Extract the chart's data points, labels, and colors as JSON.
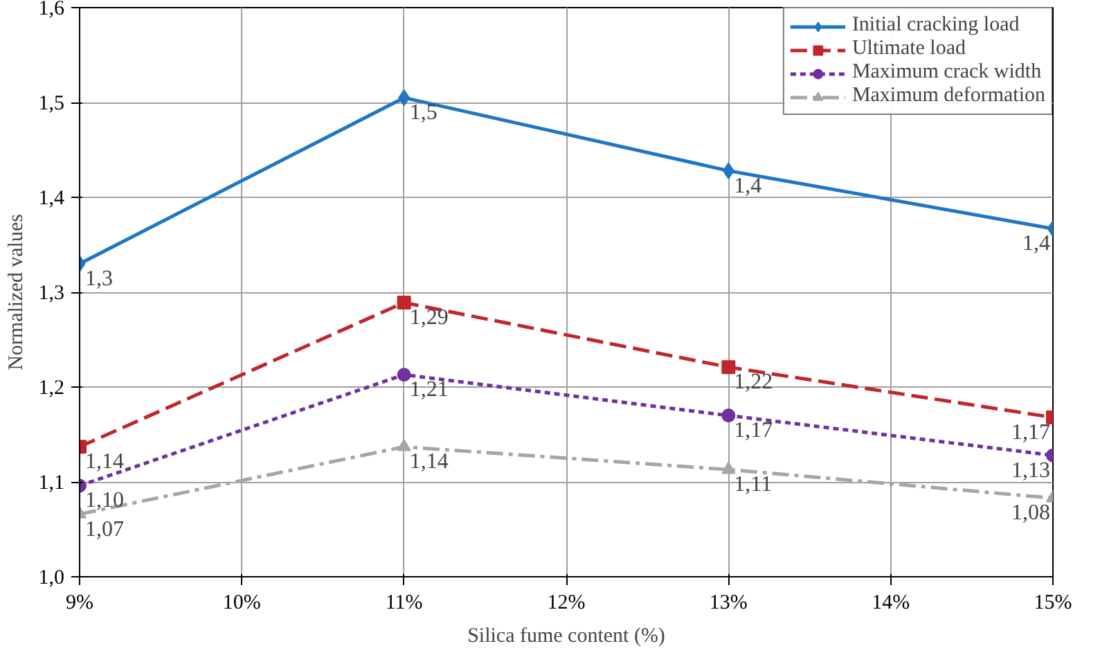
{
  "chart_data": {
    "type": "line",
    "xlabel": "Silica fume content (%)",
    "ylabel": "Normalized values",
    "x": [
      9,
      11,
      13,
      15
    ],
    "xlim": [
      9,
      15
    ],
    "xticks": [
      {
        "value": 9,
        "label": "9%"
      },
      {
        "value": 10,
        "label": "10%"
      },
      {
        "value": 11,
        "label": "11%"
      },
      {
        "value": 12,
        "label": "12%"
      },
      {
        "value": 13,
        "label": "13%"
      },
      {
        "value": 14,
        "label": "14%"
      },
      {
        "value": 15,
        "label": "15%"
      }
    ],
    "ylim": [
      1.0,
      1.6
    ],
    "yticks": [
      {
        "value": 1.0,
        "label": "1,0"
      },
      {
        "value": 1.1,
        "label": "1,1"
      },
      {
        "value": 1.2,
        "label": "1,2"
      },
      {
        "value": 1.3,
        "label": "1,3"
      },
      {
        "value": 1.4,
        "label": "1,4"
      },
      {
        "value": 1.5,
        "label": "1,5"
      },
      {
        "value": 1.6,
        "label": "1,6"
      }
    ],
    "grid": true,
    "legend": "top right",
    "series": [
      {
        "name": "Initial cracking load",
        "color": "#1f77c4",
        "marker": "diamond",
        "line_style": "solid",
        "values": [
          1.33,
          1.505,
          1.428,
          1.367
        ],
        "value_labels": [
          "1,3",
          "1,5",
          "1,4",
          "1,4"
        ]
      },
      {
        "name": "Ultimate load",
        "color": "#c0262b",
        "marker": "square",
        "line_style": "dashed",
        "values": [
          1.137,
          1.289,
          1.221,
          1.168
        ],
        "value_labels": [
          "1,14",
          "1,29",
          "1,22",
          "1,17"
        ]
      },
      {
        "name": "Maximum crack width",
        "color": "#7030a0",
        "marker": "circle",
        "line_style": "dotted",
        "values": [
          1.096,
          1.213,
          1.17,
          1.128
        ],
        "value_labels": [
          "1,10",
          "1,21",
          "1,17",
          "1,13"
        ]
      },
      {
        "name": "Maximum deformation",
        "color": "#a6a6a6",
        "marker": "triangle",
        "line_style": "dashdot",
        "values": [
          1.066,
          1.137,
          1.113,
          1.083
        ],
        "value_labels": [
          "1,07",
          "1,14",
          "1,11",
          "1,08"
        ]
      }
    ]
  }
}
